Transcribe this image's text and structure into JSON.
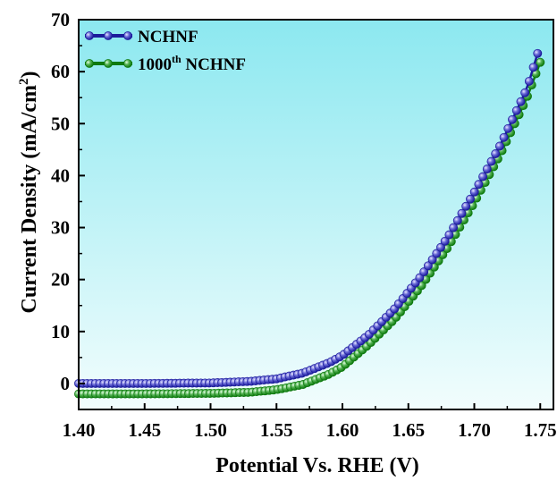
{
  "chart_data": {
    "type": "line",
    "xlabel": "Potential Vs. RHE (V)",
    "ylabel": {
      "main": "Current Density (mA/cm",
      "sup": "2",
      "close": ")"
    },
    "xlim": [
      1.4,
      1.76
    ],
    "ylim": [
      -5,
      70
    ],
    "xticks": [
      "1.40",
      "1.45",
      "1.50",
      "1.55",
      "1.60",
      "1.65",
      "1.70",
      "1.75"
    ],
    "yticks": [
      "0",
      "10",
      "20",
      "30",
      "40",
      "50",
      "60",
      "70"
    ],
    "grid": false,
    "legend_position": "top-left",
    "background": {
      "top": "#8ce8f0",
      "bottom": "#f2fdfd"
    },
    "series": [
      {
        "name": "NCHNF",
        "label": {
          "main": "NCHNF"
        },
        "color": "#1c1c9c",
        "marker_fill": "#6b6bd8",
        "x_start": 1.4,
        "x_end": 1.748,
        "n_points": 110,
        "curve": [
          [
            1.4,
            0.0
          ],
          [
            1.45,
            0.0
          ],
          [
            1.5,
            0.1
          ],
          [
            1.53,
            0.4
          ],
          [
            1.55,
            0.9
          ],
          [
            1.57,
            2.0
          ],
          [
            1.59,
            4.0
          ],
          [
            1.6,
            5.4
          ],
          [
            1.62,
            9.4
          ],
          [
            1.64,
            14.5
          ],
          [
            1.66,
            20.8
          ],
          [
            1.68,
            28.2
          ],
          [
            1.7,
            36.8
          ],
          [
            1.72,
            46.0
          ],
          [
            1.74,
            56.8
          ],
          [
            1.748,
            63.5
          ]
        ]
      },
      {
        "name": "1000th NCHNF",
        "label": {
          "main": "1000",
          "sup": "th",
          "rest": " NCHNF"
        },
        "color": "#0e7a0e",
        "marker_fill": "#55b355",
        "x_start": 1.4,
        "x_end": 1.75,
        "n_points": 110,
        "curve": [
          [
            1.4,
            -2.0
          ],
          [
            1.45,
            -2.0
          ],
          [
            1.5,
            -1.9
          ],
          [
            1.53,
            -1.7
          ],
          [
            1.55,
            -1.2
          ],
          [
            1.57,
            -0.2
          ],
          [
            1.59,
            1.8
          ],
          [
            1.6,
            3.2
          ],
          [
            1.62,
            7.5
          ],
          [
            1.64,
            12.5
          ],
          [
            1.66,
            18.8
          ],
          [
            1.68,
            26.2
          ],
          [
            1.7,
            34.8
          ],
          [
            1.72,
            44.2
          ],
          [
            1.74,
            55.0
          ],
          [
            1.75,
            61.8
          ]
        ]
      }
    ]
  }
}
